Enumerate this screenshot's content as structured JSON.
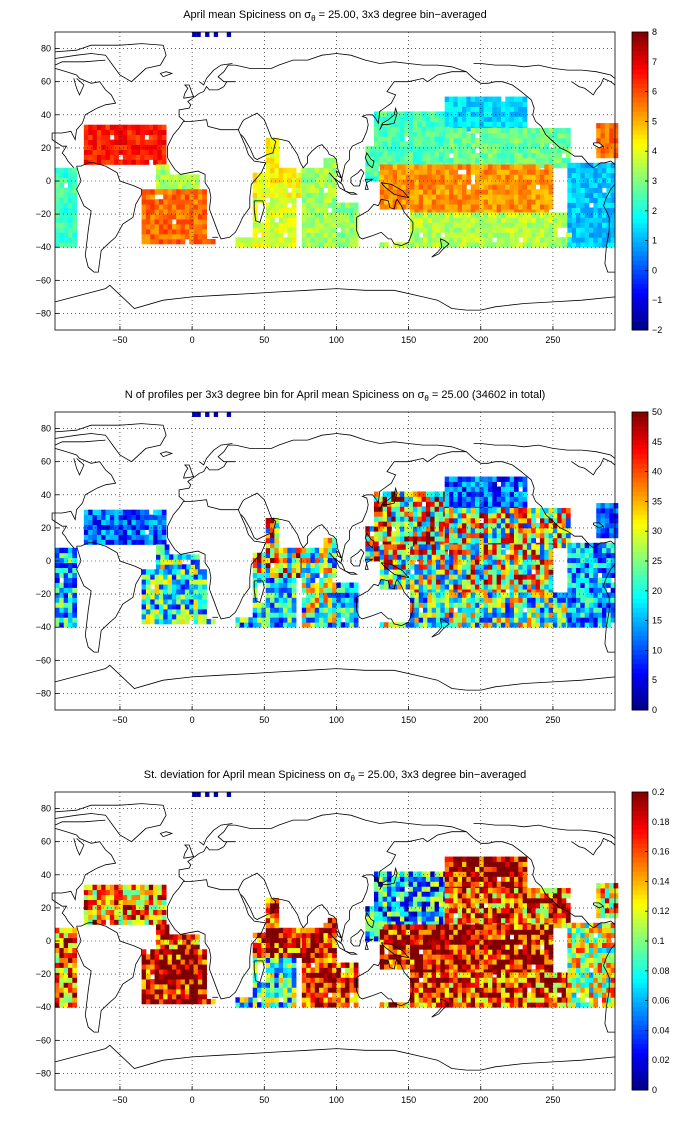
{
  "chart_data": [
    {
      "type": "heatmap",
      "title": "April mean Spiciness on σθ = 25.00, 3x3 degree bin−averaged",
      "title_parts": {
        "before": "April mean Spiciness on σ",
        "sub": "θ",
        "after": " = 25.00, 3x3 degree bin−averaged"
      },
      "xlim": [
        -95,
        293
      ],
      "ylim": [
        -90,
        90
      ],
      "xticks": [
        -50,
        0,
        50,
        100,
        150,
        200,
        250
      ],
      "yticks": [
        -80,
        -60,
        -40,
        -20,
        0,
        20,
        40,
        60,
        80
      ],
      "grid": true,
      "colormap": "jet",
      "clim": [
        -2,
        8
      ],
      "cbar_ticks": [
        -2,
        -1,
        0,
        1,
        2,
        3,
        4,
        5,
        6,
        7,
        8
      ],
      "regions": [
        {
          "lon": [
            -95,
            -78
          ],
          "lat": [
            -40,
            12
          ],
          "v": 2.3
        },
        {
          "lon": [
            -75,
            -20
          ],
          "lat": [
            10,
            34
          ],
          "v": 6.5
        },
        {
          "lon": [
            -25,
            5
          ],
          "lat": [
            -8,
            10
          ],
          "v": 3.4
        },
        {
          "lon": [
            -50,
            15
          ],
          "lat": [
            -38,
            -6
          ],
          "v": 5.7
        },
        {
          "lon": [
            -55,
            -35
          ],
          "lat": [
            -42,
            -34
          ],
          "v": 3.2
        },
        {
          "lon": [
            30,
            70
          ],
          "lat": [
            -40,
            -10
          ],
          "v": 3.9
        },
        {
          "lon": [
            42,
            76
          ],
          "lat": [
            -10,
            24
          ],
          "v": 4.2
        },
        {
          "lon": [
            76,
            100
          ],
          "lat": [
            -40,
            14
          ],
          "v": 3.3
        },
        {
          "lon": [
            100,
            115
          ],
          "lat": [
            -40,
            -14
          ],
          "v": 3.1
        },
        {
          "lon": [
            120,
            175
          ],
          "lat": [
            0,
            40
          ],
          "v": 2.5
        },
        {
          "lon": [
            175,
            230
          ],
          "lat": [
            30,
            50
          ],
          "v": 1.4
        },
        {
          "lon": [
            175,
            260
          ],
          "lat": [
            8,
            30
          ],
          "v": 2.8
        },
        {
          "lon": [
            130,
            250
          ],
          "lat": [
            -20,
            8
          ],
          "v": 5.3
        },
        {
          "lon": [
            130,
            262
          ],
          "lat": [
            -40,
            -20
          ],
          "v": 3.5
        },
        {
          "lon": [
            260,
            293
          ],
          "lat": [
            -40,
            10
          ],
          "v": 1.2
        },
        {
          "lon": [
            280,
            293
          ],
          "lat": [
            14,
            34
          ],
          "v": 5.6
        }
      ]
    },
    {
      "type": "heatmap",
      "title": "N of profiles per 3x3 degree bin for April mean Spiciness on σθ = 25.00 (34602 in total)",
      "title_parts": {
        "before": "N of profiles per 3x3 degree bin for April mean Spiciness on σ",
        "sub": "θ",
        "after": " = 25.00 (34602 in total)"
      },
      "xlim": [
        -95,
        293
      ],
      "ylim": [
        -90,
        90
      ],
      "xticks": [
        -50,
        0,
        50,
        100,
        150,
        200,
        250
      ],
      "yticks": [
        -80,
        -60,
        -40,
        -20,
        0,
        20,
        40,
        60,
        80
      ],
      "grid": true,
      "colormap": "jet",
      "clim": [
        0,
        50
      ],
      "cbar_ticks": [
        0,
        5,
        10,
        15,
        20,
        25,
        30,
        35,
        40,
        45,
        50
      ],
      "regions": [
        {
          "lon": [
            -95,
            -78
          ],
          "lat": [
            -40,
            12
          ],
          "v": 14
        },
        {
          "lon": [
            -75,
            -20
          ],
          "lat": [
            10,
            30
          ],
          "v": 9
        },
        {
          "lon": [
            -25,
            5
          ],
          "lat": [
            -8,
            10
          ],
          "v": 18
        },
        {
          "lon": [
            -50,
            15
          ],
          "lat": [
            -38,
            -6
          ],
          "v": 17
        },
        {
          "lon": [
            30,
            70
          ],
          "lat": [
            -40,
            -10
          ],
          "v": 15
        },
        {
          "lon": [
            42,
            76
          ],
          "lat": [
            -10,
            24
          ],
          "v": 26
        },
        {
          "lon": [
            76,
            100
          ],
          "lat": [
            -40,
            14
          ],
          "v": 20
        },
        {
          "lon": [
            100,
            115
          ],
          "lat": [
            -40,
            -14
          ],
          "v": 14
        },
        {
          "lon": [
            120,
            175
          ],
          "lat": [
            0,
            40
          ],
          "v": 28
        },
        {
          "lon": [
            175,
            230
          ],
          "lat": [
            30,
            50
          ],
          "v": 9
        },
        {
          "lon": [
            175,
            260
          ],
          "lat": [
            8,
            30
          ],
          "v": 24
        },
        {
          "lon": [
            130,
            250
          ],
          "lat": [
            -20,
            8
          ],
          "v": 24
        },
        {
          "lon": [
            130,
            262
          ],
          "lat": [
            -40,
            -20
          ],
          "v": 20
        },
        {
          "lon": [
            260,
            293
          ],
          "lat": [
            -40,
            10
          ],
          "v": 12
        },
        {
          "lon": [
            280,
            293
          ],
          "lat": [
            14,
            34
          ],
          "v": 8
        }
      ]
    },
    {
      "type": "heatmap",
      "title": "St. deviation for April mean Spiciness on σθ = 25.00, 3x3 degree bin−averaged",
      "title_parts": {
        "before": "St. deviation for April mean Spiciness on σ",
        "sub": "θ",
        "after": " = 25.00, 3x3 degree bin−averaged"
      },
      "xlim": [
        -95,
        293
      ],
      "ylim": [
        -90,
        90
      ],
      "xticks": [
        -50,
        0,
        50,
        100,
        150,
        200,
        250
      ],
      "yticks": [
        -80,
        -60,
        -40,
        -20,
        0,
        20,
        40,
        60,
        80
      ],
      "grid": true,
      "colormap": "jet",
      "clim": [
        0,
        0.2
      ],
      "cbar_ticks": [
        0,
        0.02,
        0.04,
        0.06,
        0.08,
        0.1,
        0.12,
        0.14,
        0.16,
        0.18,
        0.2
      ],
      "regions": [
        {
          "lon": [
            -95,
            -78
          ],
          "lat": [
            -40,
            12
          ],
          "v": 0.16
        },
        {
          "lon": [
            -75,
            -20
          ],
          "lat": [
            10,
            34
          ],
          "v": 0.15
        },
        {
          "lon": [
            -25,
            5
          ],
          "lat": [
            -8,
            10
          ],
          "v": 0.17
        },
        {
          "lon": [
            -50,
            15
          ],
          "lat": [
            -38,
            -6
          ],
          "v": 0.19
        },
        {
          "lon": [
            30,
            70
          ],
          "lat": [
            -40,
            -10
          ],
          "v": 0.09
        },
        {
          "lon": [
            42,
            76
          ],
          "lat": [
            -10,
            24
          ],
          "v": 0.18
        },
        {
          "lon": [
            76,
            100
          ],
          "lat": [
            -40,
            14
          ],
          "v": 0.19
        },
        {
          "lon": [
            100,
            115
          ],
          "lat": [
            -40,
            -14
          ],
          "v": 0.17
        },
        {
          "lon": [
            120,
            175
          ],
          "lat": [
            0,
            40
          ],
          "v": 0.07
        },
        {
          "lon": [
            175,
            230
          ],
          "lat": [
            30,
            50
          ],
          "v": 0.19
        },
        {
          "lon": [
            175,
            260
          ],
          "lat": [
            8,
            30
          ],
          "v": 0.16
        },
        {
          "lon": [
            130,
            250
          ],
          "lat": [
            -20,
            8
          ],
          "v": 0.19
        },
        {
          "lon": [
            130,
            262
          ],
          "lat": [
            -40,
            -20
          ],
          "v": 0.17
        },
        {
          "lon": [
            260,
            293
          ],
          "lat": [
            -40,
            10
          ],
          "v": 0.12
        },
        {
          "lon": [
            280,
            293
          ],
          "lat": [
            14,
            34
          ],
          "v": 0.14
        }
      ]
    }
  ]
}
